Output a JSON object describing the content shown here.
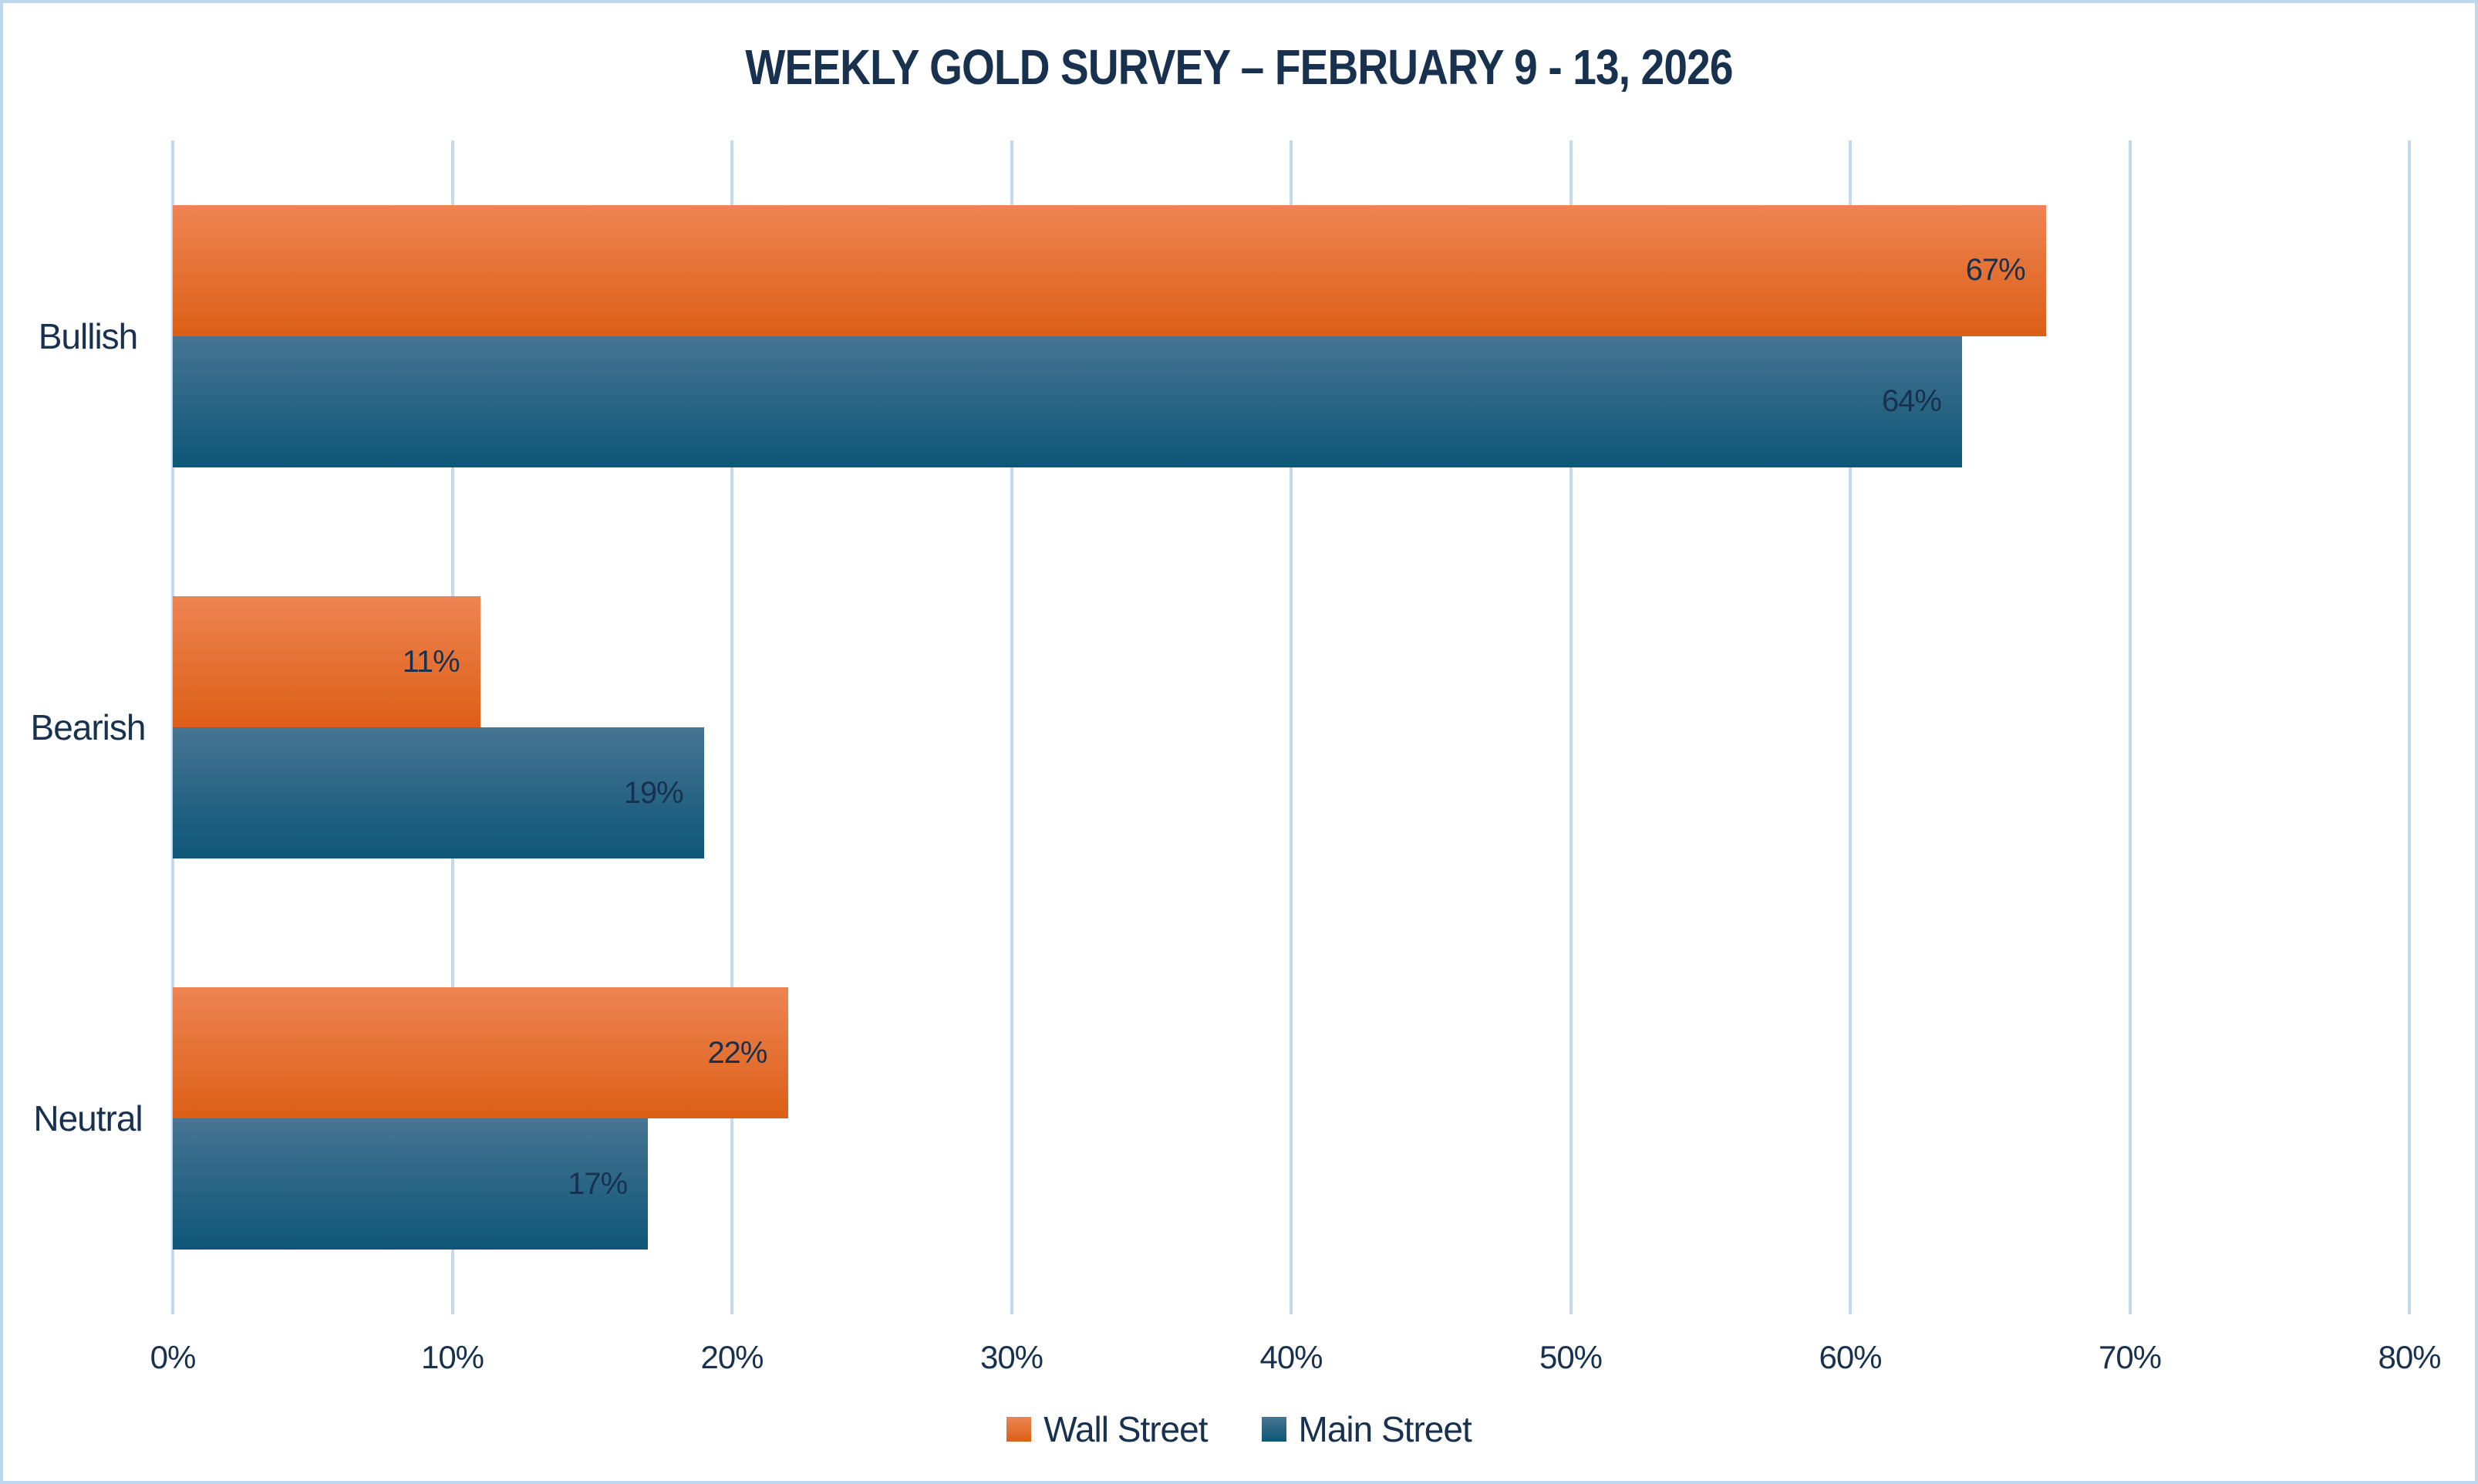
{
  "title": "WEEKLY GOLD SURVEY – FEBRUARY 9 - 13, 2026",
  "colors": {
    "text": "#17314E",
    "gridline": "#C5D9EE",
    "frame_border": "#BDD7EE",
    "background": "#FFFFFF"
  },
  "chart_data": {
    "type": "bar",
    "orientation": "horizontal",
    "title": "WEEKLY GOLD SURVEY – FEBRUARY 9 - 13, 2026",
    "categories": [
      "Bullish",
      "Bearish",
      "Neutral"
    ],
    "series": [
      {
        "name": "Wall Street",
        "color_top": "#EE8453",
        "color_bottom": "#DC5F16",
        "values": [
          67,
          11,
          22
        ]
      },
      {
        "name": "Main Street",
        "color_top": "#477493",
        "color_bottom": "#0E5677",
        "values": [
          64,
          19,
          17
        ]
      }
    ],
    "value_suffix": "%",
    "data_labels_visible": true,
    "xlim": [
      0,
      80
    ],
    "xticks": [
      "0%",
      "10%",
      "20%",
      "30%",
      "40%",
      "50%",
      "60%",
      "70%",
      "80%"
    ],
    "grid": true,
    "legend": [
      "Wall Street",
      "Main Street"
    ],
    "legend_position": "bottom"
  }
}
